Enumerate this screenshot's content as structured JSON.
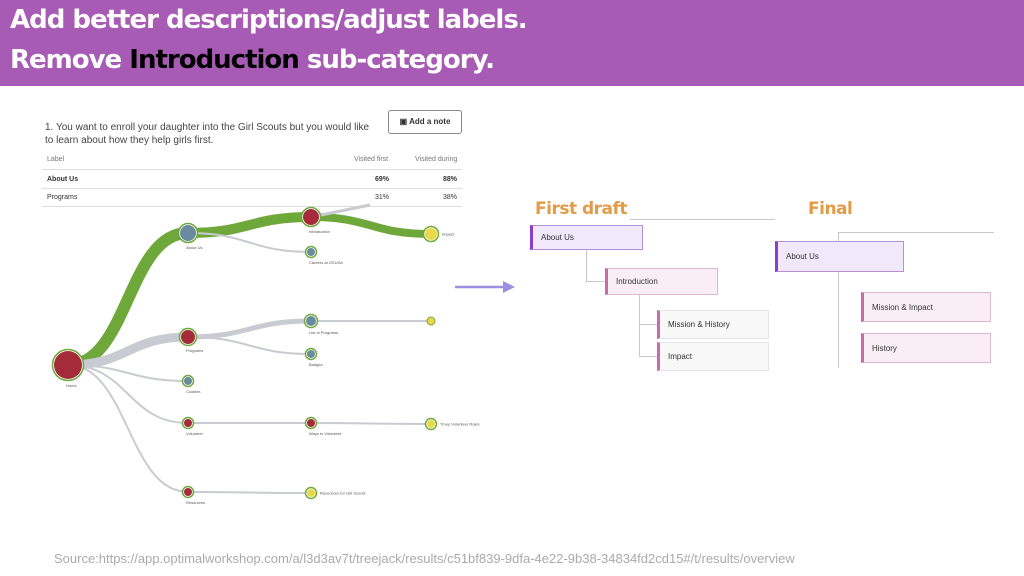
{
  "header": {
    "line1": "Add better descriptions/adjust labels.",
    "line2": {
      "before": "Remove",
      "highlight": "Introduction",
      "after": "sub-category."
    }
  },
  "screenshot": {
    "question": "1. You want to enroll your daughter into the Girl Scouts but you would like to learn about how they help girls first.",
    "button": "Add a note",
    "table": {
      "headers": [
        "Label",
        "Visited first",
        "Visited during"
      ],
      "rows": [
        [
          "About Us",
          "69%",
          "88%"
        ],
        [
          "Programs",
          "31%",
          "38%"
        ]
      ]
    },
    "nodes": [
      "Home",
      "About Us",
      "Introduction",
      "Careers at GSUSA",
      "Impact",
      "Programs",
      "List of Programs",
      "Badges",
      "Cookies",
      "Volunteer",
      "Ways to Volunteer",
      "Troop Volunteer Roles",
      "Resources",
      "Resources for Girl Scouts"
    ]
  },
  "draft": {
    "title": "First draft",
    "items": [
      "About Us",
      "Introduction",
      "Mission & History",
      "Impact"
    ]
  },
  "final": {
    "title": "Final",
    "items": [
      "About Us",
      "Mission & Impact",
      "History"
    ]
  },
  "source": "Source:https://app.optimalworkshop.com/a/l3d3av7t/treejack/results/c51bf839-9dfa-4e22-9b38-34834fd2cd15#/t/results/overview"
}
